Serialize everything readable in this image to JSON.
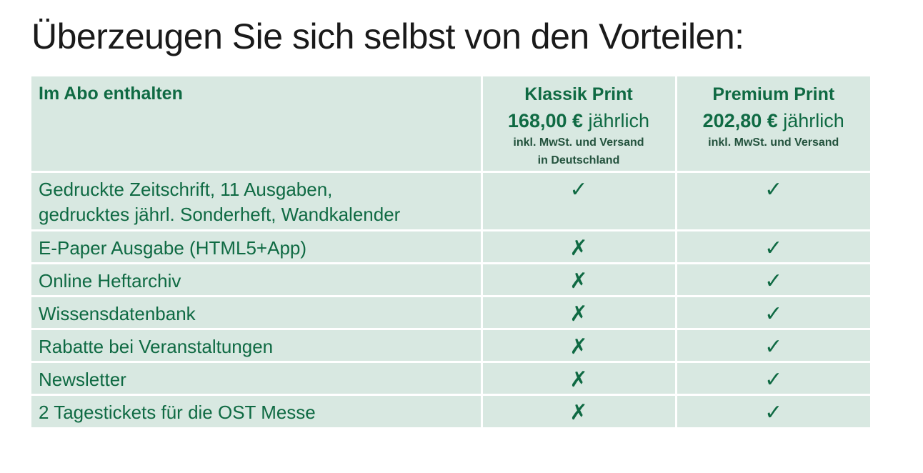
{
  "title": "Überzeugen Sie sich selbst von den Vorteilen:",
  "colors": {
    "accent_green": "#0f6a43",
    "cell_background": "#d8e8e1",
    "cross_red": "#c0152a"
  },
  "table": {
    "header": {
      "feature_column": "Im Abo enthalten",
      "plans": [
        {
          "name": "Klassik Print",
          "price": "168,00 €",
          "period": "jährlich",
          "note_line1": "inkl. MwSt. und Versand",
          "note_line2": "in Deutschland"
        },
        {
          "name": "Premium Print",
          "price": "202,80 €",
          "period": "jährlich",
          "note_line1": "inkl. MwSt. und Versand",
          "note_line2": ""
        }
      ]
    },
    "rows": [
      {
        "feature_line1": "Gedruckte Zeitschrift, 11 Ausgaben,",
        "feature_line2": "gedrucktes jährl. Sonderheft, Wandkalender",
        "klassik": "✓",
        "premium": "✓"
      },
      {
        "feature_line1": "E-Paper Ausgabe (HTML5+App)",
        "klassik": "✗",
        "premium": "✓"
      },
      {
        "feature_line1": "Online Heftarchiv",
        "klassik": "✗",
        "premium": "✓"
      },
      {
        "feature_line1": "Wissensdatenbank",
        "klassik": "✗",
        "premium": "✓"
      },
      {
        "feature_line1": "Rabatte bei Veranstaltungen",
        "klassik": "✗",
        "premium": "✓"
      },
      {
        "feature_line1": "Newsletter",
        "klassik": "✗",
        "premium": "✓"
      },
      {
        "feature_line1": "2 Tagestickets für die OST Messe",
        "klassik": "✗",
        "premium": "✓"
      }
    ]
  }
}
